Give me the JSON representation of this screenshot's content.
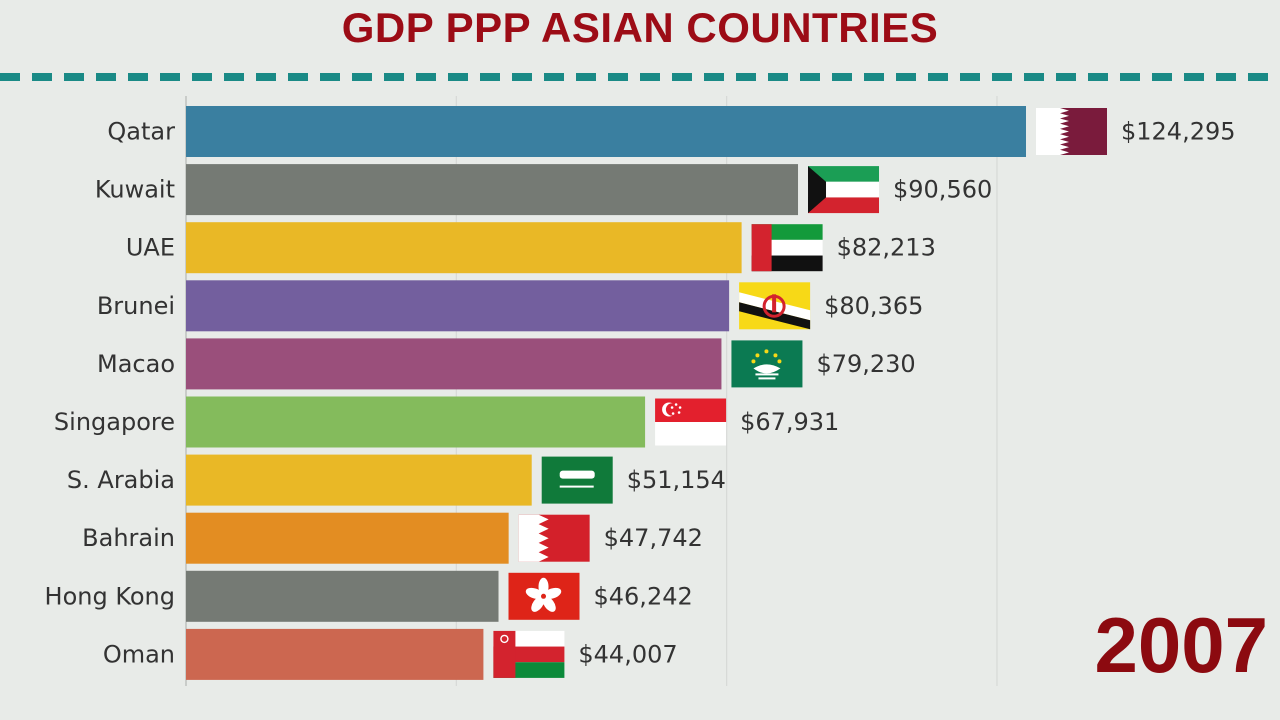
{
  "title": "GDP PPP ASIAN COUNTRIES",
  "year": "2007",
  "chart_data": {
    "type": "bar",
    "orientation": "horizontal",
    "title": "GDP PPP ASIAN COUNTRIES",
    "categories": [
      "Qatar",
      "Kuwait",
      "UAE",
      "Brunei",
      "Macao",
      "Singapore",
      "S. Arabia",
      "Bahrain",
      "Hong Kong",
      "Oman"
    ],
    "values": [
      124295,
      90560,
      82213,
      80365,
      79230,
      67931,
      51154,
      47742,
      46242,
      44007
    ],
    "value_labels": [
      "$124,295",
      "$90,560",
      "$82,213",
      "$80,365",
      "$79,230",
      "$67,931",
      "$51,154",
      "$47,742",
      "$46,242",
      "$44,007"
    ],
    "colors": [
      "#3a7fa0",
      "#757a74",
      "#e9b826",
      "#735f9e",
      "#9a4f7b",
      "#84bb5c",
      "#e9b826",
      "#e38d22",
      "#757a74",
      "#cc6750"
    ],
    "flags": [
      "qatar-flag",
      "kuwait-flag",
      "uae-flag",
      "brunei-flag",
      "macao-flag",
      "singapore-flag",
      "saudi-arabia-flag",
      "bahrain-flag",
      "hong-kong-flag",
      "oman-flag"
    ],
    "xlim": [
      0,
      124295
    ],
    "grid": true
  }
}
